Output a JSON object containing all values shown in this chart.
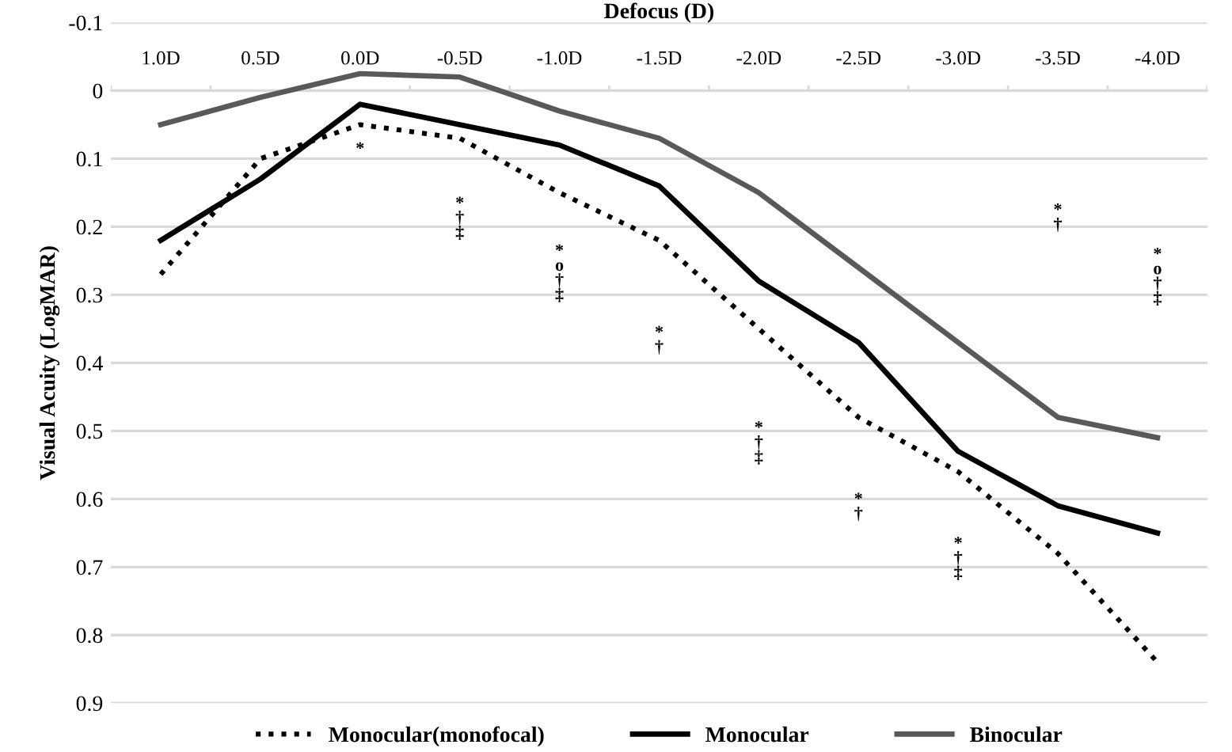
{
  "chart_data": {
    "type": "line",
    "xlabel": "Defocus (D)",
    "ylabel": "Visual Acuity (LogMAR)",
    "categories": [
      "1.0D",
      "0.5D",
      "0.0D",
      "-0.5D",
      "-1.0D",
      "-1.5D",
      "-2.0D",
      "-2.5D",
      "-3.0D",
      "-3.5D",
      "-4.0D"
    ],
    "series": [
      {
        "name": "Monocular(monofocal)",
        "color": "#000000",
        "line_style": "dotted",
        "values": [
          0.27,
          0.1,
          0.05,
          0.07,
          0.15,
          0.22,
          0.35,
          0.48,
          0.56,
          0.68,
          0.84
        ]
      },
      {
        "name": "Monocular",
        "color": "#000000",
        "line_style": "solid",
        "values": [
          0.22,
          0.13,
          0.02,
          0.05,
          0.08,
          0.14,
          0.28,
          0.37,
          0.53,
          0.61,
          0.65
        ]
      },
      {
        "name": "Binocular",
        "color": "#595959",
        "line_style": "solid",
        "values": [
          0.05,
          0.01,
          -0.025,
          -0.02,
          0.03,
          0.07,
          0.15,
          0.26,
          0.37,
          0.48,
          0.51
        ]
      }
    ],
    "ylim": [
      0.9,
      -0.1
    ],
    "yticks": [
      -0.1,
      0,
      0.1,
      0.2,
      0.3,
      0.4,
      0.5,
      0.6,
      0.7,
      0.8,
      0.9
    ],
    "grid": "y",
    "legend": "bottom",
    "marker": "none",
    "annotations": [
      "*",
      "*\n†\n‡",
      "*\no\n†\n‡",
      "*\n†",
      "*\n†\n‡",
      "*\n†",
      "*\n†\n‡",
      "*\n†",
      "*\no\n†\n‡"
    ]
  }
}
